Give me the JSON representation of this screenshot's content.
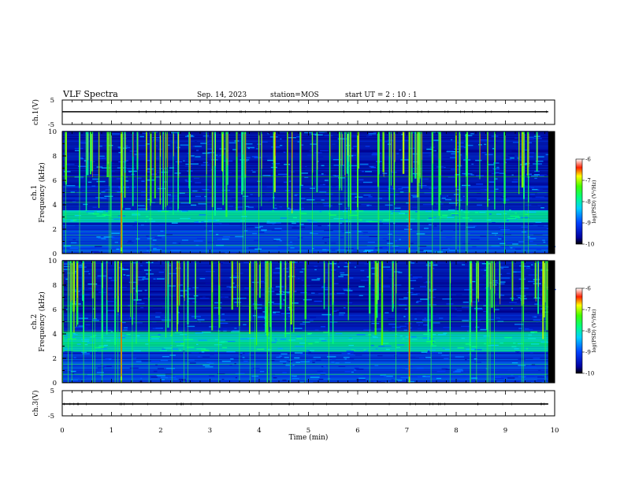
{
  "header": {
    "title": "VLF Spectra",
    "date": "Sep. 14, 2023",
    "station": "station=MOS",
    "start": "start UT =  2 : 10 : 1"
  },
  "chart_data": [
    {
      "type": "line",
      "id": "ch1_waveform",
      "ylabel": "ch.1(V)",
      "ylim": [
        -5,
        5
      ],
      "yticks": [
        "5",
        "-5"
      ],
      "xlim": [
        0,
        10
      ],
      "series": [
        {
          "x": [
            0,
            9.87
          ],
          "y": [
            0.2,
            0.2
          ]
        }
      ]
    },
    {
      "type": "heatmap",
      "id": "ch1_spectrogram",
      "ylabel": "ch.1\nFrequency (kHz)",
      "ylim": [
        0,
        10
      ],
      "yticks": [
        "0",
        "2",
        "4",
        "6",
        "8",
        "10"
      ],
      "xlim": [
        0,
        10
      ],
      "colorbar": {
        "label": "log(PSD) (V²/Hz)",
        "range": [
          -10,
          -6
        ],
        "ticks": [
          "-6",
          "-7",
          "-8",
          "-9",
          "-10"
        ]
      },
      "features": {
        "bright_band_kHz": [
          2.6,
          3.6
        ],
        "strong_sferics_min": [
          1.2,
          7.05
        ]
      }
    },
    {
      "type": "heatmap",
      "id": "ch2_spectrogram",
      "ylabel": "ch.2\nFrequency (kHz)",
      "ylim": [
        0,
        10
      ],
      "yticks": [
        "0",
        "2",
        "4",
        "6",
        "8",
        "10"
      ],
      "xlim": [
        0,
        10
      ],
      "colorbar": {
        "label": "log(PSD) (V²/Hz)",
        "range": [
          -10,
          -6
        ],
        "ticks": [
          "-6",
          "-7",
          "-8",
          "-9",
          "-10"
        ]
      },
      "features": {
        "bright_band_kHz": [
          2.6,
          4.2
        ],
        "strong_sferics_min": [
          1.2,
          7.05
        ]
      }
    },
    {
      "type": "line",
      "id": "ch3_waveform",
      "ylabel": "ch.3(V)",
      "ylim": [
        -5,
        5
      ],
      "yticks": [
        "5",
        "-5"
      ],
      "xlim": [
        0,
        10
      ],
      "series": [
        {
          "x": [
            0,
            9.87
          ],
          "y": [
            -0.3,
            -0.3
          ]
        }
      ]
    }
  ],
  "xaxis": {
    "label": "Time (min)",
    "range": [
      0,
      10
    ],
    "ticks": [
      "0",
      "1",
      "2",
      "3",
      "4",
      "5",
      "6",
      "7",
      "8",
      "9",
      "10"
    ]
  }
}
